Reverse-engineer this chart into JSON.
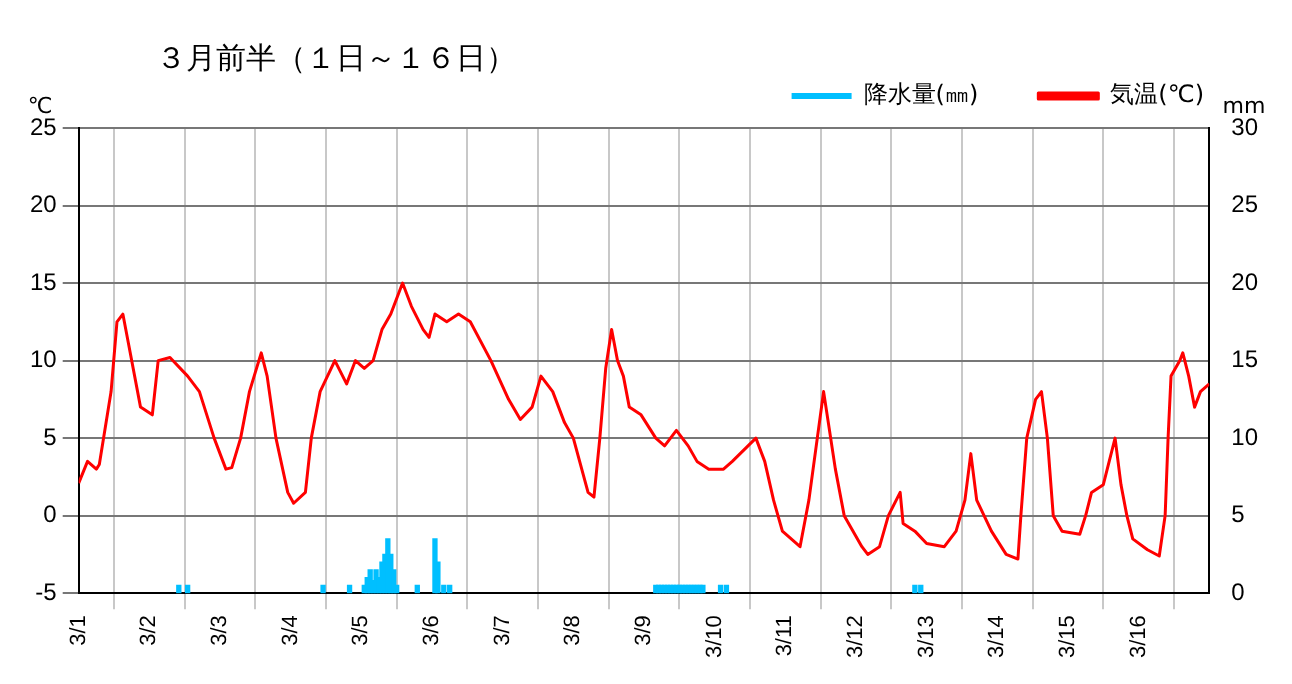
{
  "chart_data": {
    "type": "line",
    "title": "３月前半（１日～１６日）",
    "ylabel": "℃",
    "y2label": "mm",
    "xlim": [
      "--03-01T00:00",
      "--03-17T00:00"
    ],
    "xticks": [
      {
        "value": "--03-01",
        "label": "3/1"
      },
      {
        "value": "--03-02",
        "label": "3/2"
      },
      {
        "value": "--03-03",
        "label": "3/3"
      },
      {
        "value": "--03-04",
        "label": "3/4"
      },
      {
        "value": "--03-05",
        "label": "3/5"
      },
      {
        "value": "--03-06",
        "label": "3/6"
      },
      {
        "value": "--03-07",
        "label": "3/7"
      },
      {
        "value": "--03-08",
        "label": "3/8"
      },
      {
        "value": "--03-09",
        "label": "3/9"
      },
      {
        "value": "--03-10",
        "label": "3/10"
      },
      {
        "value": "--03-11",
        "label": "3/11"
      },
      {
        "value": "--03-12",
        "label": "3/12"
      },
      {
        "value": "--03-13",
        "label": "3/13"
      },
      {
        "value": "--03-14",
        "label": "3/14"
      },
      {
        "value": "--03-15",
        "label": "3/15"
      },
      {
        "value": "--03-16",
        "label": "3/16"
      }
    ],
    "ylim": [
      -5,
      25
    ],
    "yticks": [
      -5,
      0,
      5,
      10,
      15,
      20,
      25
    ],
    "y2lim": [
      0,
      30
    ],
    "y2ticks": [
      0,
      5,
      10,
      15,
      20,
      25,
      30
    ],
    "grid": true,
    "legend": "top right",
    "marker": "none",
    "line_style": "solid",
    "series": [
      {
        "type": "bar",
        "name": "降水量(㎜)",
        "color": "#00bfff",
        "axis": "y2",
        "x": [
          "--03-02T10:00",
          "--03-02T13:00",
          "--03-04T11:00",
          "--03-04T20:00",
          "--03-05T01:00",
          "--03-05T02:00",
          "--03-05T03:00",
          "--03-05T04:00",
          "--03-05T05:00",
          "--03-05T06:00",
          "--03-05T07:00",
          "--03-05T08:00",
          "--03-05T09:00",
          "--03-05T10:00",
          "--03-05T11:00",
          "--03-05T12:00",
          "--03-05T19:00",
          "--03-06T01:00",
          "--03-06T02:00",
          "--03-06T04:00",
          "--03-06T06:00",
          "--03-09T04:00",
          "--03-09T05:00",
          "--03-09T06:00",
          "--03-09T07:00",
          "--03-09T08:00",
          "--03-09T09:00",
          "--03-09T10:00",
          "--03-09T11:00",
          "--03-09T12:00",
          "--03-09T13:00",
          "--03-09T14:00",
          "--03-09T15:00",
          "--03-09T16:00",
          "--03-09T17:00",
          "--03-09T18:00",
          "--03-09T19:00",
          "--03-09T20:00",
          "--03-10T02:00",
          "--03-10T04:00",
          "--03-12T20:00",
          "--03-12T22:00"
        ],
        "values": [
          0.5,
          0.5,
          0.5,
          0.5,
          0.5,
          1,
          1.5,
          0.8,
          1.5,
          1,
          2,
          2.5,
          3.5,
          2.5,
          1.5,
          0.5,
          0.5,
          3.5,
          2,
          0.5,
          0.5,
          0.5,
          0.5,
          0.5,
          0.5,
          0.5,
          0.5,
          0.5,
          0.5,
          0.5,
          0.5,
          0.5,
          0.5,
          0.5,
          0.5,
          0.5,
          0.5,
          0.5,
          0.5,
          0.5,
          0.5,
          0.5
        ]
      },
      {
        "name": "気温(℃)",
        "color": "#ff0000",
        "x": [
          "--03-01T00:00",
          "--03-01T03:00",
          "--03-01T06:00",
          "--03-01T07:00",
          "--03-01T11:00",
          "--03-01T13:00",
          "--03-01T15:00",
          "--03-01T17:00",
          "--03-01T21:00",
          "--03-02T01:00",
          "--03-02T03:00",
          "--03-02T07:00",
          "--03-02T13:00",
          "--03-02T17:00",
          "--03-02T22:00",
          "--03-03T02:00",
          "--03-03T04:00",
          "--03-03T07:00",
          "--03-03T10:00",
          "--03-03T14:00",
          "--03-03T16:00",
          "--03-03T19:00",
          "--03-03T23:00",
          "--03-04T01:00",
          "--03-04T05:00",
          "--03-04T07:00",
          "--03-04T10:00",
          "--03-04T15:00",
          "--03-04T19:00",
          "--03-04T22:00",
          "--03-05T01:00",
          "--03-05T04:00",
          "--03-05T07:00",
          "--03-05T10:00",
          "--03-05T14:00",
          "--03-05T17:00",
          "--03-05T21:00",
          "--03-05T23:00",
          "--03-06T01:00",
          "--03-06T05:00",
          "--03-06T09:00",
          "--03-06T13:00",
          "--03-06T20:00",
          "--03-07T02:00",
          "--03-07T06:00",
          "--03-07T10:00",
          "--03-07T13:00",
          "--03-07T17:00",
          "--03-07T21:00",
          "--03-08T00:00",
          "--03-08T05:00",
          "--03-08T07:00",
          "--03-08T09:00",
          "--03-08T11:00",
          "--03-08T13:00",
          "--03-08T15:00",
          "--03-08T17:00",
          "--03-08T19:00",
          "--03-08T23:00",
          "--03-09T04:00",
          "--03-09T07:00",
          "--03-09T11:00",
          "--03-09T15:00",
          "--03-09T18:00",
          "--03-09T22:00",
          "--03-10T03:00",
          "--03-10T06:00",
          "--03-10T14:00",
          "--03-10T17:00",
          "--03-10T20:00",
          "--03-10T23:00",
          "--03-11T05:00",
          "--03-11T08:00",
          "--03-11T13:00",
          "--03-11T15:00",
          "--03-11T17:00",
          "--03-11T20:00",
          "--03-12T02:00",
          "--03-12T04:00",
          "--03-12T08:00",
          "--03-12T11:00",
          "--03-12T15:00",
          "--03-12T16:00",
          "--03-12T20:00",
          "--03-13T00:00",
          "--03-13T06:00",
          "--03-13T10:00",
          "--03-13T13:00",
          "--03-13T15:00",
          "--03-13T17:00",
          "--03-13T22:00",
          "--03-14T03:00",
          "--03-14T07:00",
          "--03-14T08:00",
          "--03-14T10:00",
          "--03-14T13:00",
          "--03-14T15:00",
          "--03-14T17:00",
          "--03-14T19:00",
          "--03-14T22:00",
          "--03-15T04:00",
          "--03-15T06:00",
          "--03-15T08:00",
          "--03-15T12:00",
          "--03-15T16:00",
          "--03-15T18:00",
          "--03-15T20:00",
          "--03-15T22:00",
          "--03-16T03:00",
          "--03-16T07:00",
          "--03-16T09:00",
          "--03-16T10:00",
          "--03-16T11:00",
          "--03-16T14:00",
          "--03-16T15:00",
          "--03-16T17:00",
          "--03-16T19:00",
          "--03-16T21:00",
          "--03-17T00:00"
        ],
        "values": [
          2.1,
          3.5,
          3,
          3.3,
          8,
          12.5,
          13,
          11,
          7,
          6.5,
          10,
          10.2,
          9,
          8,
          5,
          3,
          3.1,
          5,
          8,
          10.5,
          9,
          5,
          1.5,
          0.8,
          1.5,
          5,
          8,
          10,
          8.5,
          10,
          9.5,
          10,
          12,
          13,
          15,
          13.5,
          12,
          11.5,
          13,
          12.5,
          13,
          12.5,
          10,
          7.5,
          6.2,
          7,
          9,
          8,
          6,
          5,
          1.5,
          1.2,
          5,
          9.5,
          12,
          10,
          9,
          7,
          6.5,
          5,
          4.5,
          5.5,
          4.5,
          3.5,
          3,
          3,
          3.5,
          5,
          3.5,
          1,
          -1,
          -2,
          1,
          8,
          5.5,
          3,
          0,
          -2,
          -2.5,
          -2,
          0,
          1.5,
          -0.5,
          -1,
          -1.8,
          -2,
          -1,
          1,
          4,
          1,
          -1,
          -2.5,
          -2.8,
          0,
          5,
          7.5,
          8,
          5,
          0,
          -1,
          -1.2,
          0,
          1.5,
          2,
          5,
          2,
          0,
          -1.5,
          -2.2,
          -2.6,
          0,
          5,
          9,
          10,
          10.5,
          9,
          7,
          8,
          8.5
        ]
      }
    ]
  }
}
